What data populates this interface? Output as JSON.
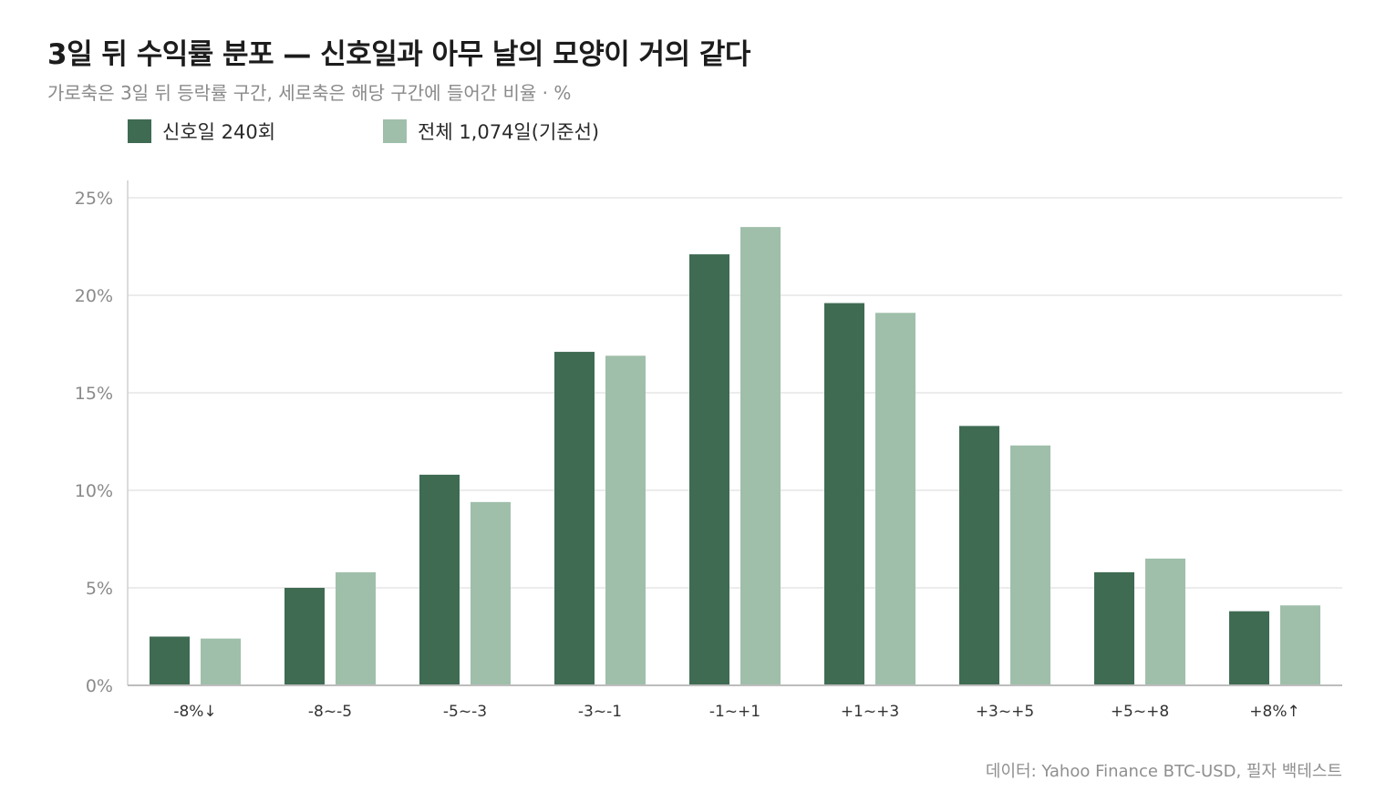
{
  "header": {
    "title": "3일 뒤 수익률 분포 — 신호일과 아무 날의 모양이 거의 같다",
    "subtitle": "가로축은 3일 뒤 등락률 구간, 세로축은 해당 구간에 들어간 비율 · %"
  },
  "footer": {
    "source": "데이터: Yahoo Finance BTC-USD, 필자 백테스트"
  },
  "chart_data": {
    "type": "bar",
    "categories": [
      "-8%↓",
      "-8~-5",
      "-5~-3",
      "-3~-1",
      "-1~+1",
      "+1~+3",
      "+3~+5",
      "+5~+8",
      "+8%↑"
    ],
    "series": [
      {
        "name": "신호일 240회",
        "color": "#3f6b53",
        "values": [
          2.5,
          5.0,
          10.8,
          17.1,
          22.1,
          19.6,
          13.3,
          5.8,
          3.8
        ]
      },
      {
        "name": "전체 1,074일(기준선)",
        "color": "#9fbfaa",
        "values": [
          2.4,
          5.8,
          9.4,
          16.9,
          23.5,
          19.1,
          12.3,
          6.5,
          4.1
        ]
      }
    ],
    "yticks": [
      "0%",
      "5%",
      "10%",
      "15%",
      "20%",
      "25%"
    ],
    "ylim": [
      0,
      25
    ],
    "grid": true,
    "legend_position": "top-left"
  }
}
